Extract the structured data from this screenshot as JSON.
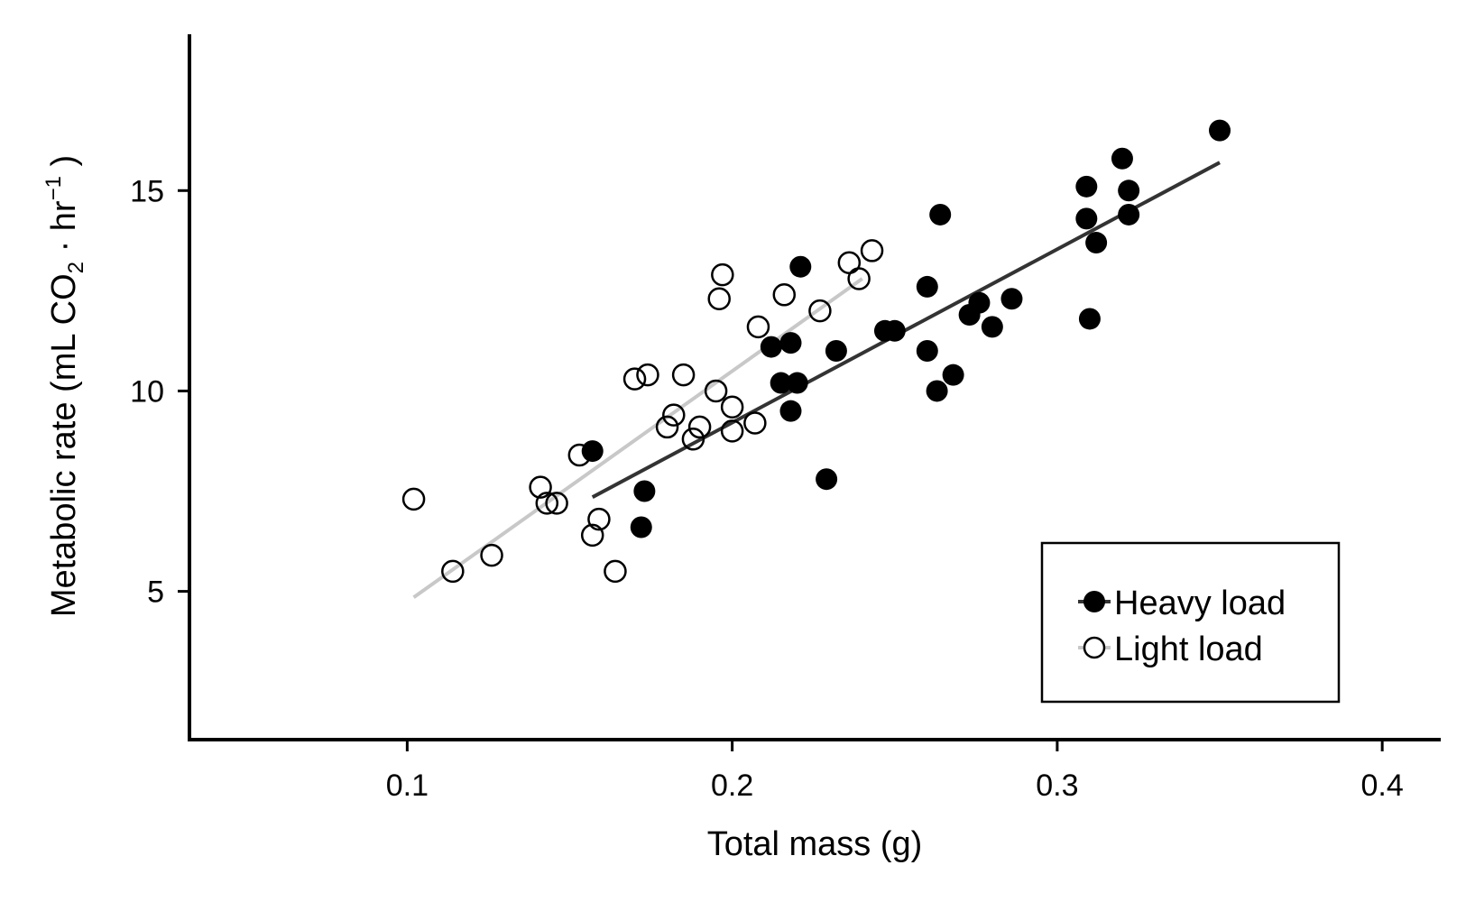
{
  "chart_data": {
    "type": "scatter",
    "title": "",
    "xlabel": "Total mass (g)",
    "ylabel": {
      "pre": "Metabolic rate (mL CO",
      "sub": "2",
      "mid": " · hr",
      "sup": "−1",
      "post": " )"
    },
    "xlim": [
      0.033,
      0.418
    ],
    "ylim": [
      1.3,
      18.9
    ],
    "x_ticks": [
      0.1,
      0.2,
      0.3,
      0.4
    ],
    "x_tick_labels": [
      "0.1",
      "0.2",
      "0.3",
      "0.4"
    ],
    "y_ticks": [
      5,
      10,
      15
    ],
    "y_tick_labels": [
      "5",
      "10",
      "15"
    ],
    "grid": false,
    "legend": {
      "placement": "bottom-right",
      "entries": [
        "Heavy load",
        "Light load"
      ]
    },
    "series": [
      {
        "name": "Heavy load",
        "marker": "filled-circle",
        "color": "#000000",
        "line_color": "#333333",
        "points": [
          [
            0.157,
            8.5
          ],
          [
            0.173,
            7.5
          ],
          [
            0.172,
            6.6
          ],
          [
            0.221,
            13.1
          ],
          [
            0.212,
            11.1
          ],
          [
            0.218,
            11.2
          ],
          [
            0.215,
            10.2
          ],
          [
            0.22,
            10.2
          ],
          [
            0.218,
            9.5
          ],
          [
            0.232,
            11.0
          ],
          [
            0.229,
            7.8
          ],
          [
            0.247,
            11.5
          ],
          [
            0.25,
            11.5
          ],
          [
            0.26,
            12.6
          ],
          [
            0.264,
            14.4
          ],
          [
            0.26,
            11.0
          ],
          [
            0.263,
            10.0
          ],
          [
            0.268,
            10.4
          ],
          [
            0.273,
            11.9
          ],
          [
            0.276,
            12.2
          ],
          [
            0.28,
            11.6
          ],
          [
            0.286,
            12.3
          ],
          [
            0.309,
            15.1
          ],
          [
            0.309,
            14.3
          ],
          [
            0.312,
            13.7
          ],
          [
            0.31,
            11.8
          ],
          [
            0.32,
            15.8
          ],
          [
            0.322,
            15.0
          ],
          [
            0.322,
            14.4
          ],
          [
            0.35,
            16.5
          ]
        ],
        "fit": [
          [
            0.157,
            7.35
          ],
          [
            0.35,
            15.7
          ]
        ]
      },
      {
        "name": "Light load",
        "marker": "open-circle",
        "color": "#000000",
        "line_color": "#c8c8c8",
        "points": [
          [
            0.102,
            7.3
          ],
          [
            0.114,
            5.5
          ],
          [
            0.126,
            5.9
          ],
          [
            0.141,
            7.6
          ],
          [
            0.143,
            7.2
          ],
          [
            0.146,
            7.2
          ],
          [
            0.153,
            8.4
          ],
          [
            0.157,
            6.4
          ],
          [
            0.159,
            6.8
          ],
          [
            0.164,
            5.5
          ],
          [
            0.17,
            10.3
          ],
          [
            0.174,
            10.4
          ],
          [
            0.18,
            9.1
          ],
          [
            0.182,
            9.4
          ],
          [
            0.185,
            10.4
          ],
          [
            0.188,
            8.8
          ],
          [
            0.19,
            9.1
          ],
          [
            0.195,
            10.0
          ],
          [
            0.196,
            12.3
          ],
          [
            0.197,
            12.9
          ],
          [
            0.2,
            9.0
          ],
          [
            0.2,
            9.6
          ],
          [
            0.207,
            9.2
          ],
          [
            0.208,
            11.6
          ],
          [
            0.216,
            12.4
          ],
          [
            0.227,
            12.0
          ],
          [
            0.236,
            13.2
          ],
          [
            0.239,
            12.8
          ],
          [
            0.243,
            13.5
          ]
        ],
        "fit": [
          [
            0.102,
            4.85
          ],
          [
            0.24,
            12.8
          ]
        ]
      }
    ]
  }
}
